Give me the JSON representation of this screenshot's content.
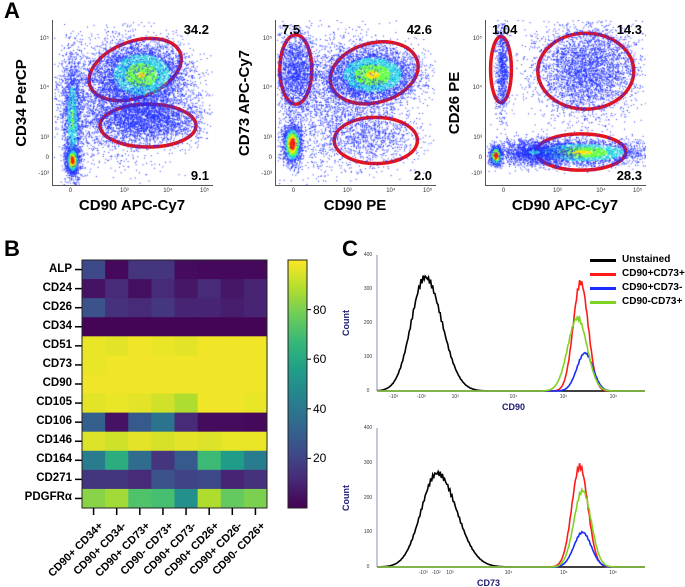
{
  "panels": {
    "a": "A",
    "b": "B",
    "c": "C"
  },
  "panel_a": [
    {
      "ylabel": "CD34 PerCP",
      "xlabel": "CD90 APC-Cy7",
      "yticks": [
        "10⁵",
        "10⁴",
        "10³",
        "0",
        "-10³"
      ],
      "xticks": [
        "0",
        "10³",
        "10⁴",
        "10⁵"
      ],
      "gates": [
        {
          "label": "34.2",
          "pos": "top-right"
        },
        {
          "label": "9.1",
          "pos": "bottom-right"
        }
      ]
    },
    {
      "ylabel": "CD73 APC-Cy7",
      "xlabel": "CD90 PE",
      "yticks": [
        "10⁵",
        "10⁴",
        "10³",
        "0",
        "-10³"
      ],
      "xticks": [
        "0",
        "10³",
        "10⁴",
        "10⁵"
      ],
      "gates": [
        {
          "label": "7.5",
          "pos": "top-left"
        },
        {
          "label": "42.6",
          "pos": "top-right"
        },
        {
          "label": "2.0",
          "pos": "bottom-right"
        }
      ]
    },
    {
      "ylabel": "CD26 PE",
      "xlabel": "CD90 APC-Cy7",
      "yticks": [
        "10⁵",
        "10⁴",
        "10³",
        "0",
        "-10³"
      ],
      "xticks": [
        "0",
        "10³",
        "10⁴",
        "10⁵"
      ],
      "gates": [
        {
          "label": "1.04",
          "pos": "top-left"
        },
        {
          "label": "14.3",
          "pos": "top-right"
        },
        {
          "label": "28.3",
          "pos": "bottom-right"
        }
      ]
    }
  ],
  "chart_data": [
    {
      "type": "heatmap",
      "title": "",
      "rows": [
        "ALP",
        "CD24",
        "CD26",
        "CD34",
        "CD51",
        "CD73",
        "CD90",
        "CD105",
        "CD106",
        "CD146",
        "CD164",
        "CD271",
        "PDGFRα"
      ],
      "columns": [
        "CD90+ CD34+",
        "CD90+ CD34-",
        "CD90+ CD73+",
        "CD90- CD73+",
        "CD90+ CD73-",
        "CD90+ CD26+",
        "CD90+ CD26-",
        "CD90- CD26+"
      ],
      "values": [
        [
          22,
          2,
          15,
          15,
          3,
          2,
          2,
          2
        ],
        [
          5,
          12,
          4,
          12,
          6,
          12,
          6,
          10
        ],
        [
          25,
          14,
          12,
          16,
          10,
          10,
          8,
          10
        ],
        [
          1,
          1,
          1,
          1,
          1,
          1,
          1,
          1
        ],
        [
          97,
          96,
          98,
          97,
          96,
          98,
          98,
          98
        ],
        [
          97,
          98,
          98,
          98,
          98,
          98,
          98,
          98
        ],
        [
          98,
          98,
          98,
          98,
          98,
          98,
          98,
          98
        ],
        [
          96,
          97,
          96,
          93,
          88,
          98,
          98,
          97
        ],
        [
          30,
          5,
          28,
          38,
          12,
          3,
          3,
          2
        ],
        [
          95,
          93,
          96,
          94,
          96,
          95,
          97,
          97
        ],
        [
          42,
          62,
          35,
          15,
          28,
          68,
          55,
          42
        ],
        [
          15,
          15,
          12,
          25,
          20,
          22,
          10,
          14
        ],
        [
          82,
          86,
          72,
          70,
          50,
          88,
          76,
          80
        ]
      ],
      "colorbar": {
        "range": [
          0,
          100
        ],
        "ticks": [
          "80",
          "60",
          "40",
          "20"
        ],
        "tick_values": [
          80,
          60,
          40,
          20
        ],
        "colormap": "viridis"
      }
    },
    {
      "type": "line",
      "title": "",
      "xlabel": "CD90",
      "ylabel": "Count",
      "ylim": [
        0,
        400
      ],
      "xlim_channel": [
        0,
        1000
      ],
      "yticks": [
        "400",
        "300",
        "200",
        "100",
        "0"
      ],
      "xticks": [
        {
          "label": "-10³",
          "ch": 62
        },
        {
          "label": "-10²",
          "ch": 165
        },
        {
          "label": "10²",
          "ch": 292
        },
        {
          "label": "10⁴",
          "ch": 509
        },
        {
          "label": "10⁵",
          "ch": 696
        },
        {
          "label": "10⁶",
          "ch": 882
        }
      ],
      "series": [
        {
          "name": "Unstained",
          "color": "#000000",
          "peak_channel": 180,
          "peak_count": 335,
          "sd": 52
        },
        {
          "name": "CD90+CD73+",
          "color": "#ff1a1a",
          "peak_channel": 760,
          "peak_count": 320,
          "sd": 28
        },
        {
          "name": "CD90+CD73-",
          "color": "#1a2cff",
          "peak_channel": 776,
          "peak_count": 112,
          "sd": 30
        },
        {
          "name": "CD90-CD73+",
          "color": "#7ed321",
          "peak_channel": 748,
          "peak_count": 215,
          "sd": 36
        }
      ]
    },
    {
      "type": "line",
      "title": "",
      "xlabel": "CD73",
      "ylabel": "Count",
      "ylim": [
        0,
        400
      ],
      "xlim_channel": [
        0,
        1000
      ],
      "yticks": [
        "400",
        "300",
        "200",
        "100",
        "0"
      ],
      "xticks": [
        {
          "label": "-10³",
          "ch": 172
        },
        {
          "label": "-10²",
          "ch": 221
        },
        {
          "label": "10³",
          "ch": 272
        },
        {
          "label": "10⁴",
          "ch": 491
        },
        {
          "label": "10⁵",
          "ch": 697
        },
        {
          "label": "10⁶",
          "ch": 881
        }
      ],
      "series": [
        {
          "name": "Unstained",
          "color": "#000000",
          "peak_channel": 225,
          "peak_count": 270,
          "sd": 60
        },
        {
          "name": "CD90+CD73+",
          "color": "#ff1a1a",
          "peak_channel": 757,
          "peak_count": 290,
          "sd": 30
        },
        {
          "name": "CD90+CD73-",
          "color": "#1a2cff",
          "peak_channel": 767,
          "peak_count": 100,
          "sd": 32
        },
        {
          "name": "CD90-CD73+",
          "color": "#7ed321",
          "peak_channel": 767,
          "peak_count": 220,
          "sd": 32
        }
      ]
    }
  ],
  "legend": [
    "Unstained",
    "CD90+CD73+",
    "CD90+CD73-",
    "CD90-CD73+"
  ]
}
